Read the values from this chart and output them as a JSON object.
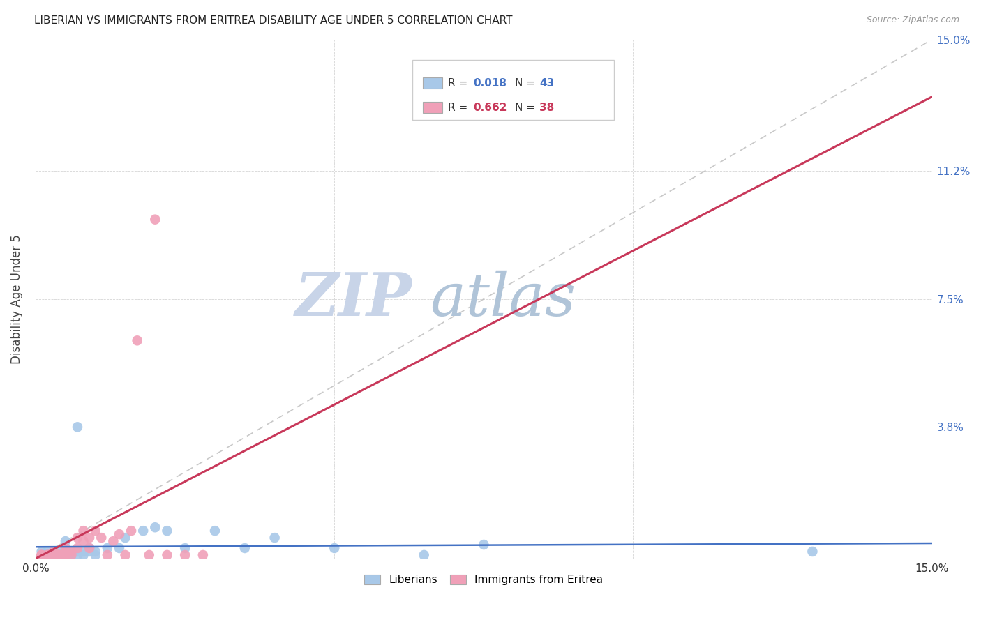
{
  "title": "LIBERIAN VS IMMIGRANTS FROM ERITREA DISABILITY AGE UNDER 5 CORRELATION CHART",
  "source": "Source: ZipAtlas.com",
  "ylabel": "Disability Age Under 5",
  "xlim": [
    0.0,
    0.15
  ],
  "ylim": [
    0.0,
    0.15
  ],
  "ytick_positions": [
    0.0,
    0.038,
    0.075,
    0.112,
    0.15
  ],
  "ytick_labels": [
    "",
    "3.8%",
    "7.5%",
    "11.2%",
    "15.0%"
  ],
  "xtick_positions": [
    0.0,
    0.05,
    0.1,
    0.15
  ],
  "xtick_labels": [
    "0.0%",
    "",
    "",
    "15.0%"
  ],
  "r_liberian": 0.018,
  "n_liberian": 43,
  "r_eritrea": 0.662,
  "n_eritrea": 38,
  "legend_label_1": "Liberians",
  "legend_label_2": "Immigrants from Eritrea",
  "color_blue": "#a8c8e8",
  "color_pink": "#f0a0b8",
  "line_color_blue": "#4472c4",
  "line_color_pink": "#c8385a",
  "watermark_zip_color": "#c8d4e8",
  "watermark_atlas_color": "#b0c4d8",
  "blue_x": [
    0.001,
    0.001,
    0.002,
    0.002,
    0.002,
    0.003,
    0.003,
    0.003,
    0.003,
    0.004,
    0.004,
    0.004,
    0.005,
    0.005,
    0.005,
    0.005,
    0.006,
    0.006,
    0.006,
    0.007,
    0.007,
    0.008,
    0.008,
    0.009,
    0.009,
    0.01,
    0.01,
    0.012,
    0.014,
    0.015,
    0.018,
    0.02,
    0.022,
    0.025,
    0.03,
    0.035,
    0.04,
    0.05,
    0.065,
    0.075,
    0.13,
    0.005,
    0.007
  ],
  "blue_y": [
    0.001,
    0.002,
    0.001,
    0.001,
    0.002,
    0.001,
    0.001,
    0.002,
    0.001,
    0.001,
    0.002,
    0.001,
    0.001,
    0.001,
    0.002,
    0.001,
    0.001,
    0.002,
    0.001,
    0.002,
    0.001,
    0.001,
    0.002,
    0.002,
    0.003,
    0.002,
    0.001,
    0.003,
    0.003,
    0.006,
    0.008,
    0.009,
    0.008,
    0.003,
    0.008,
    0.003,
    0.006,
    0.003,
    0.001,
    0.004,
    0.002,
    0.005,
    0.038
  ],
  "pink_x": [
    0.001,
    0.001,
    0.001,
    0.002,
    0.002,
    0.002,
    0.003,
    0.003,
    0.003,
    0.003,
    0.004,
    0.004,
    0.004,
    0.005,
    0.005,
    0.005,
    0.005,
    0.006,
    0.006,
    0.007,
    0.007,
    0.008,
    0.008,
    0.009,
    0.009,
    0.01,
    0.011,
    0.012,
    0.013,
    0.014,
    0.015,
    0.016,
    0.017,
    0.019,
    0.02,
    0.022,
    0.025,
    0.028
  ],
  "pink_y": [
    0.001,
    0.001,
    0.001,
    0.001,
    0.001,
    0.001,
    0.001,
    0.001,
    0.002,
    0.001,
    0.001,
    0.001,
    0.001,
    0.001,
    0.002,
    0.003,
    0.001,
    0.002,
    0.001,
    0.003,
    0.006,
    0.005,
    0.008,
    0.006,
    0.003,
    0.008,
    0.006,
    0.001,
    0.005,
    0.007,
    0.001,
    0.008,
    0.063,
    0.001,
    0.098,
    0.001,
    0.001,
    0.001
  ]
}
